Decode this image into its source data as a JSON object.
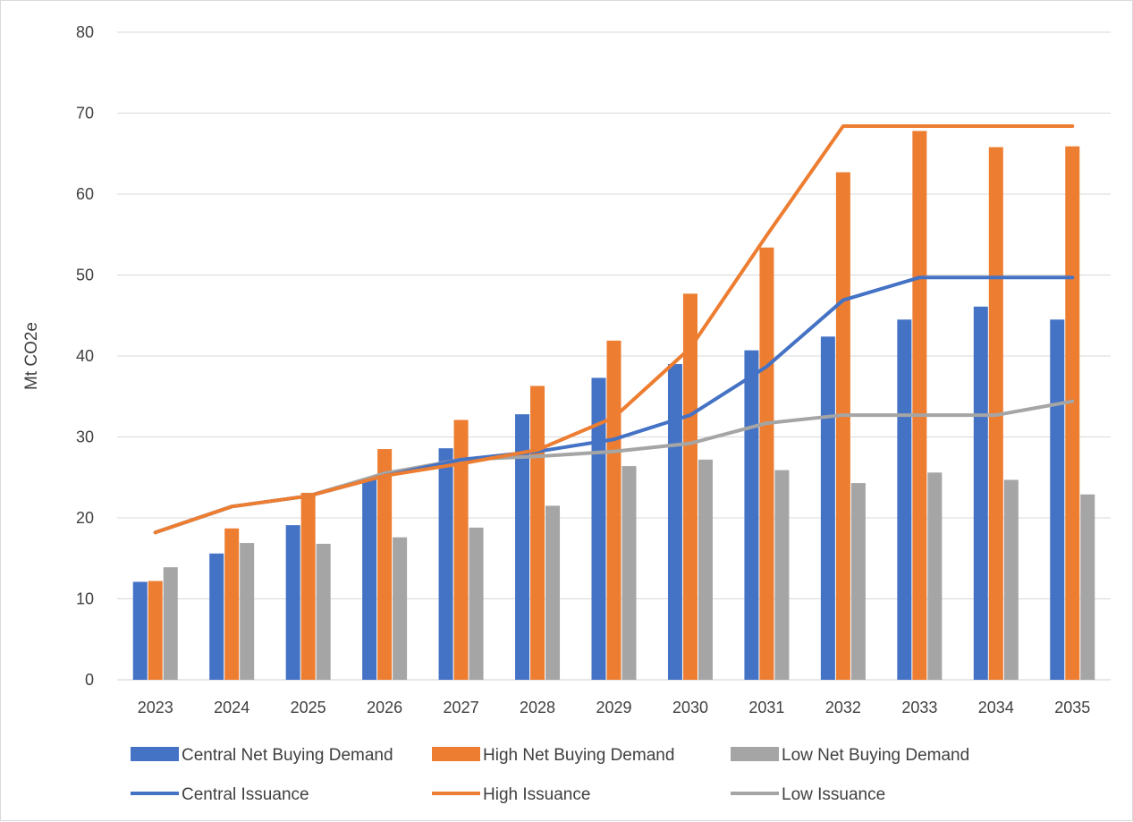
{
  "chart_data": {
    "type": "bar",
    "title": "",
    "xlabel": "",
    "ylabel": "Mt CO2e",
    "ylim": [
      0,
      80
    ],
    "yticks": [
      0,
      10,
      20,
      30,
      40,
      50,
      60,
      70,
      80
    ],
    "grid": true,
    "legend_position": "bottom",
    "categories": [
      "2023",
      "2024",
      "2025",
      "2026",
      "2027",
      "2028",
      "2029",
      "2030",
      "2031",
      "2032",
      "2033",
      "2034",
      "2035"
    ],
    "bar_series": [
      {
        "name": "Central Net Buying Demand",
        "color": "#4472C4",
        "values": [
          12.1,
          15.6,
          19.1,
          24.8,
          28.6,
          32.8,
          37.3,
          39.0,
          40.7,
          42.4,
          44.5,
          46.1,
          44.5
        ]
      },
      {
        "name": "High Net Buying Demand",
        "color": "#ED7D31",
        "values": [
          12.2,
          18.7,
          23.1,
          28.5,
          32.1,
          36.3,
          41.9,
          47.7,
          53.4,
          62.7,
          67.8,
          65.8,
          65.9
        ]
      },
      {
        "name": "Low Net Buying Demand",
        "color": "#A5A5A5",
        "values": [
          13.9,
          16.9,
          16.8,
          17.6,
          18.8,
          21.5,
          26.4,
          27.2,
          25.9,
          24.3,
          25.6,
          24.7,
          22.9
        ]
      }
    ],
    "line_series": [
      {
        "name": "Central Issuance",
        "color": "#4472C4",
        "values": [
          18.2,
          21.4,
          22.7,
          25.2,
          27.2,
          28.2,
          29.7,
          32.7,
          38.7,
          46.9,
          49.7,
          49.7,
          49.7
        ]
      },
      {
        "name": "High Issuance",
        "color": "#ED7D31",
        "values": [
          18.2,
          21.4,
          22.7,
          25.2,
          26.7,
          28.4,
          32.4,
          41.0,
          54.9,
          68.4,
          68.4,
          68.4,
          68.4
        ]
      },
      {
        "name": "Low Issuance",
        "color": "#A5A5A5",
        "values": [
          18.2,
          21.4,
          22.7,
          25.5,
          27.2,
          27.6,
          28.2,
          29.2,
          31.7,
          32.7,
          32.7,
          32.7,
          34.4
        ]
      }
    ]
  }
}
